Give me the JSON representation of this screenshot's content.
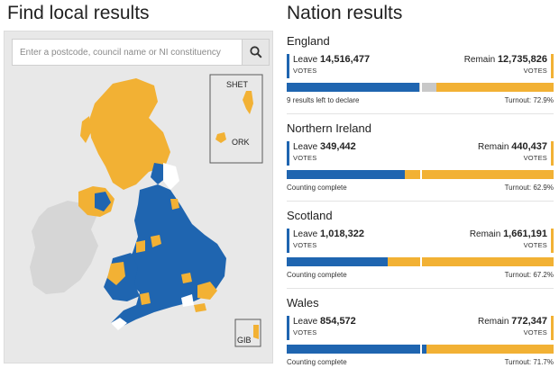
{
  "local": {
    "title": "Find local results",
    "search_placeholder": "Enter a postcode, council name or NI constituency",
    "search_icon": "magnifier-icon",
    "insets": {
      "shetland": "SHET",
      "orkney": "ORK",
      "gibraltar": "GIB"
    }
  },
  "colors": {
    "leave": "#1f65b0",
    "remain": "#f2b134",
    "undeclared": "#c8c8c8",
    "land_other": "#d6d6d6",
    "sea": "#e8e8e8"
  },
  "nations": {
    "title": "Nation results",
    "items": [
      {
        "name": "England",
        "leave_label": "Leave",
        "leave_votes": "14,516,477",
        "remain_label": "Remain",
        "remain_votes": "12,735,826",
        "votes_label": "VOTES",
        "leave_share": 0.495,
        "remain_share": 0.44,
        "status": "9 results left to declare",
        "turnout": "Turnout: 72.9%"
      },
      {
        "name": "Northern Ireland",
        "leave_label": "Leave",
        "leave_votes": "349,442",
        "remain_label": "Remain",
        "remain_votes": "440,437",
        "votes_label": "VOTES",
        "leave_share": 0.442,
        "remain_share": 0.558,
        "status": "Counting complete",
        "turnout": "Turnout: 62.9%"
      },
      {
        "name": "Scotland",
        "leave_label": "Leave",
        "leave_votes": "1,018,322",
        "remain_label": "Remain",
        "remain_votes": "1,661,191",
        "votes_label": "VOTES",
        "leave_share": 0.38,
        "remain_share": 0.62,
        "status": "Counting complete",
        "turnout": "Turnout: 67.2%"
      },
      {
        "name": "Wales",
        "leave_label": "Leave",
        "leave_votes": "854,572",
        "remain_label": "Remain",
        "remain_votes": "772,347",
        "votes_label": "VOTES",
        "leave_share": 0.525,
        "remain_share": 0.475,
        "status": "Counting complete",
        "turnout": "Turnout: 71.7%"
      }
    ]
  }
}
